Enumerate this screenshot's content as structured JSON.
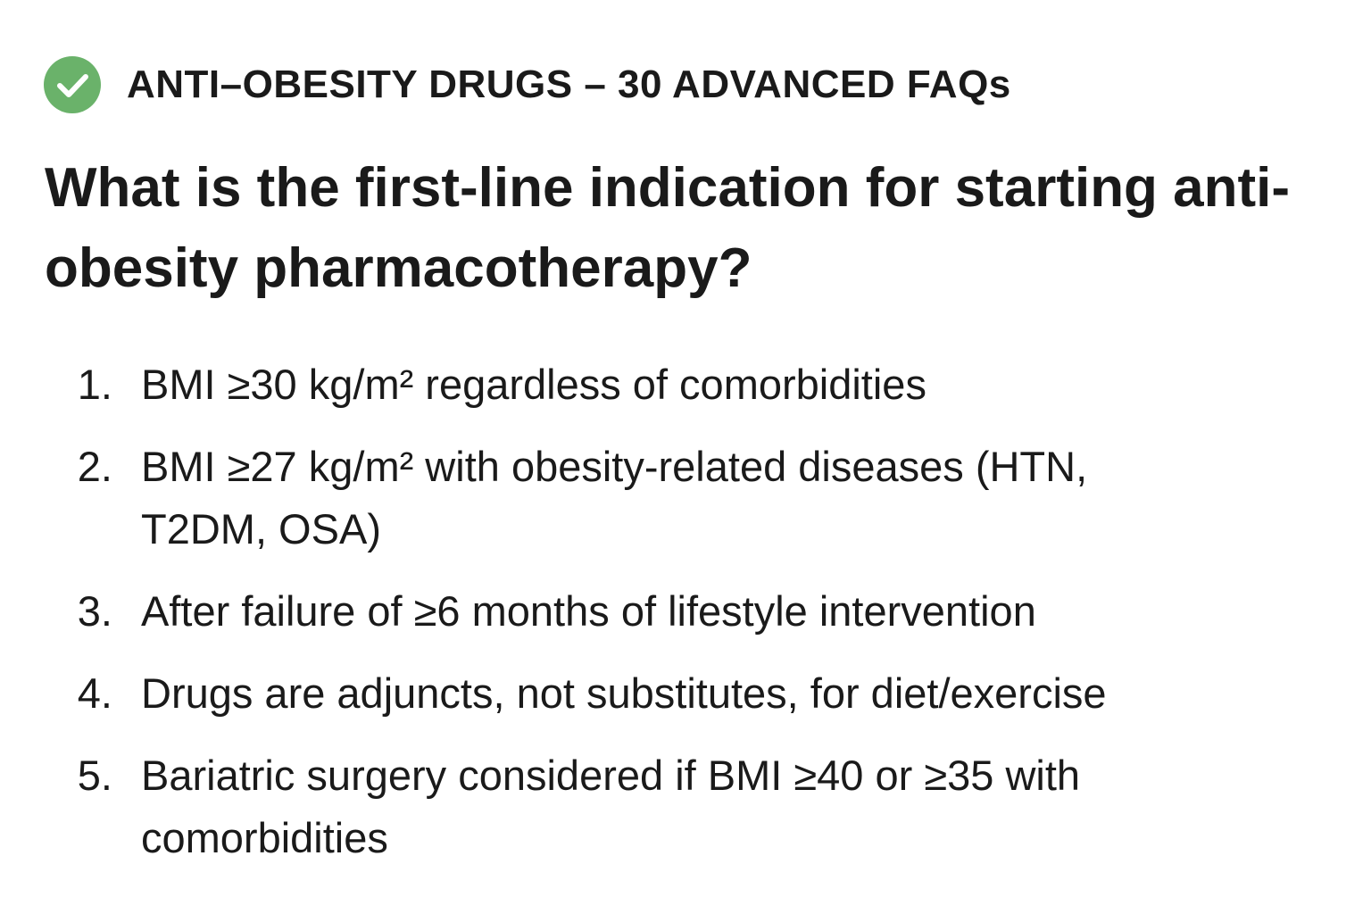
{
  "header": {
    "title": "ANTI–OBESITY DRUGS – 30 ADVANCED FAQs"
  },
  "question": "What is the first-line indication for starting anti-obesity pharmacotherapy?",
  "items": [
    {
      "number": "1.",
      "text": "BMI ≥30 kg/m² regardless of comorbidities"
    },
    {
      "number": "2.",
      "text": "BMI ≥27 kg/m² with obesity-related diseases (HTN, T2DM, OSA)"
    },
    {
      "number": "3.",
      "text": "After failure of ≥6 months of lifestyle intervention"
    },
    {
      "number": "4.",
      "text": "Drugs are adjuncts, not substitutes, for diet/exercise"
    },
    {
      "number": "5.",
      "text": "Bariatric surgery considered if BMI ≥40 or ≥35 with comorbidities"
    }
  ]
}
